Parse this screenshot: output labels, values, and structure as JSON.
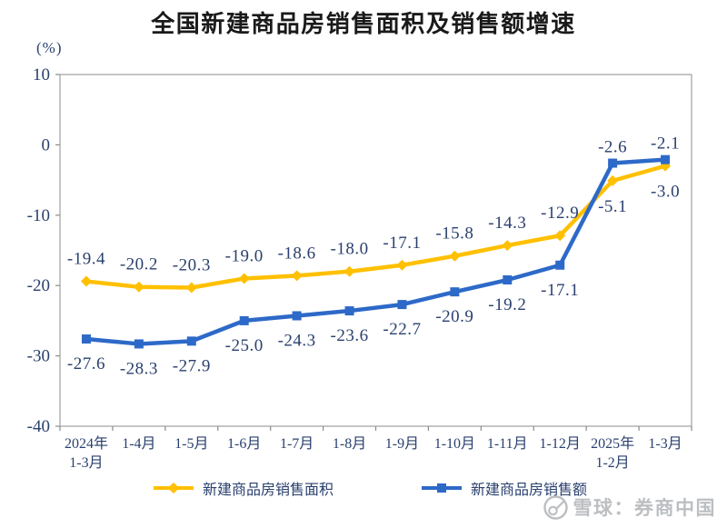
{
  "chart_data": {
    "type": "line",
    "title": "全国新建商品房销售面积及销售额增速",
    "unit_label": "(%)",
    "categories": [
      "2024年\n1-3月",
      "1-4月",
      "1-5月",
      "1-6月",
      "1-7月",
      "1-8月",
      "1-9月",
      "1-10月",
      "1-11月",
      "1-12月",
      "2025年\n1-2月",
      "1-3月"
    ],
    "series": [
      {
        "name": "新建商品房销售面积",
        "marker": "diamond",
        "color": "#FFC000",
        "values": [
          -19.4,
          -20.2,
          -20.3,
          -19.0,
          -18.6,
          -18.0,
          -17.1,
          -15.8,
          -14.3,
          -12.9,
          -5.1,
          -3.0
        ],
        "label_side": "above",
        "label_side_last_two": "below"
      },
      {
        "name": "新建商品房销售额",
        "marker": "square",
        "color": "#2D69C8",
        "values": [
          -27.6,
          -28.3,
          -27.9,
          -25.0,
          -24.3,
          -23.6,
          -22.7,
          -20.9,
          -19.2,
          -17.1,
          -2.6,
          -2.1
        ],
        "label_side": "below",
        "label_side_last_two": "above"
      }
    ],
    "y_ticks": [
      10,
      0,
      -10,
      -20,
      -30,
      -40
    ],
    "ylim": [
      -40,
      10
    ],
    "grid": false,
    "legend_position": "bottom",
    "axis_text_color": "#2a406e",
    "plot_border_color": "#a8a8a8",
    "tick_color": "#8c8c8c"
  },
  "footer": {
    "source_text": "雪球：券商中国",
    "color": "#bcbfc2"
  }
}
